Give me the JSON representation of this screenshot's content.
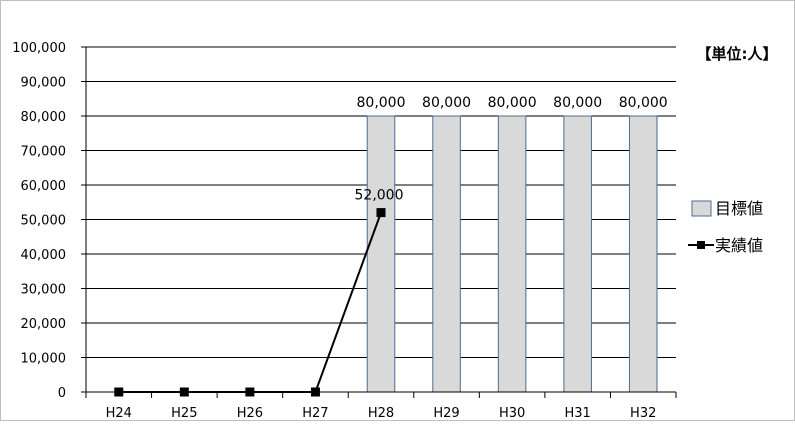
{
  "chart_data": {
    "type": "bar",
    "unit_label": "【単位:人】",
    "categories": [
      "H24",
      "H25",
      "H26",
      "H27",
      "H28",
      "H29",
      "H30",
      "H31",
      "H32"
    ],
    "ylim": [
      0,
      100000
    ],
    "y_ticks": [
      "0",
      "10,000",
      "20,000",
      "30,000",
      "40,000",
      "50,000",
      "60,000",
      "70,000",
      "80,000",
      "90,000",
      "100,000"
    ],
    "grid": true,
    "legend_position": "right",
    "series": [
      {
        "name": "目標値",
        "kind": "bar",
        "color": "#d9d9d9",
        "edge_color": "#4f6b95",
        "values": [
          null,
          null,
          null,
          null,
          80000,
          80000,
          80000,
          80000,
          80000
        ],
        "labels": [
          "",
          "",
          "",
          "",
          "80,000",
          "80,000",
          "80,000",
          "80,000",
          "80,000"
        ]
      },
      {
        "name": "実績値",
        "kind": "line",
        "color": "#000000",
        "values": [
          0,
          0,
          0,
          0,
          52000,
          null,
          null,
          null,
          null
        ],
        "labels": [
          "",
          "",
          "",
          "",
          "52,000",
          "",
          "",
          "",
          ""
        ]
      }
    ]
  }
}
